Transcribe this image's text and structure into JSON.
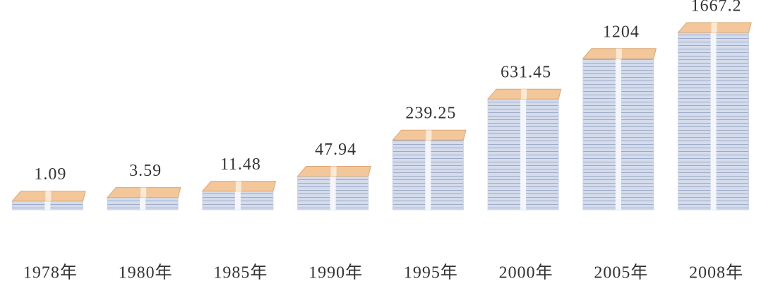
{
  "chart_data": {
    "type": "pictograph",
    "categories": [
      "1978年",
      "1980年",
      "1985年",
      "1990年",
      "1995年",
      "2000年",
      "2005年",
      "2008年"
    ],
    "values": [
      1.09,
      3.59,
      11.48,
      47.94,
      239.25,
      631.45,
      1204,
      1667.2
    ],
    "color": "#c9d3e6",
    "top_color": "#f3c79a"
  }
}
